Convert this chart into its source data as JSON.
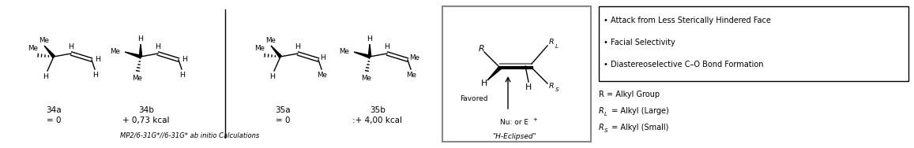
{
  "bg_color": "#ffffff",
  "fig_width": 11.57,
  "fig_height": 1.88,
  "dpi": 100,
  "label_34a_name": "34a",
  "label_34a_val": "= 0",
  "label_34b_name": "34b",
  "label_34b_val": "+ 0,73 kcal",
  "label_35a_name": "35a",
  "label_35a_val": "= 0",
  "label_35b_name": "35b",
  "label_35b_val": ":+ 4,00 kcal",
  "label_calc": "MP2/6-31G*//6-31G* ab initio Calculations",
  "bullet1": "• Attack from Less Sterically Hindered Face",
  "bullet2": "• Facial Selectivity",
  "bullet3": "• Diastereoselective C–O Bond Formation",
  "def1": "R = Alkyl Group",
  "def2": "R",
  "def2_sub": "L",
  "def2_rest": " = Alkyl (Large)",
  "def3": "R",
  "def3_sub": "S",
  "def3_rest": " = Alkyl (Small)",
  "favored": "Favored",
  "nu": "Nu: or E",
  "nu_sup": "+",
  "h_eclipsed": "\"H-Eclipsed\""
}
